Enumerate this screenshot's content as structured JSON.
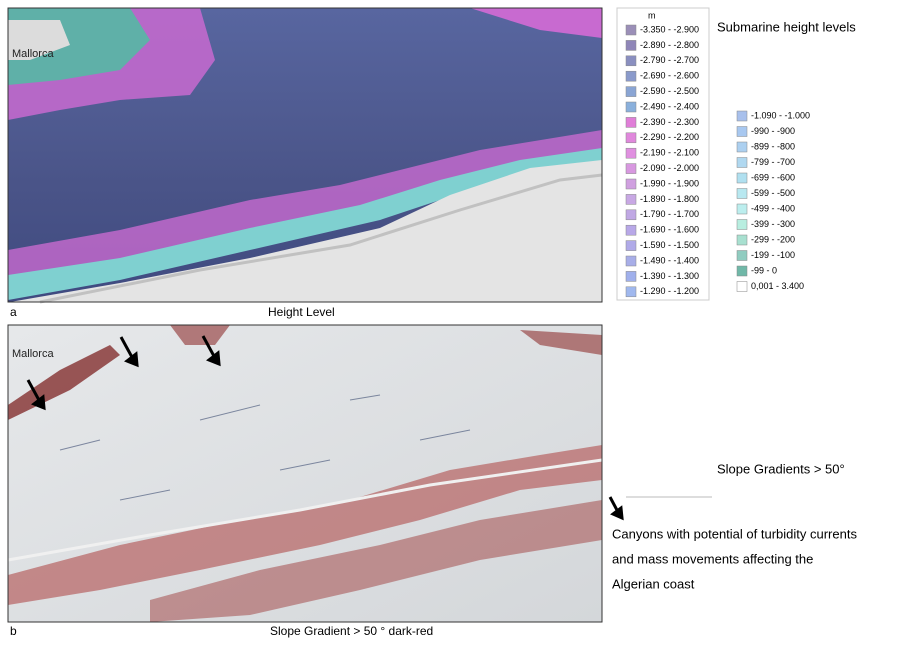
{
  "panel_a": {
    "place_label": "Mallorca",
    "letter": "a",
    "caption": "Height Level"
  },
  "panel_b": {
    "place_label": "Mallorca",
    "letter": "b",
    "caption": "Slope Gradient > 50 °   dark-red"
  },
  "legend": {
    "unit": "m",
    "title": "Submarine height levels",
    "column_1": [
      {
        "label": "-3.350 - -2.900",
        "color": "#9b8fb8"
      },
      {
        "label": "-2.890 - -2.800",
        "color": "#8f86b8"
      },
      {
        "label": "-2.790 - -2.700",
        "color": "#8a8fc0"
      },
      {
        "label": "-2.690 - -2.600",
        "color": "#8a9acb"
      },
      {
        "label": "-2.590 - -2.500",
        "color": "#8aa5d4"
      },
      {
        "label": "-2.490 - -2.400",
        "color": "#8ab0dc"
      },
      {
        "label": "-2.390 - -2.300",
        "color": "#e07ed8"
      },
      {
        "label": "-2.290 - -2.200",
        "color": "#e088dc"
      },
      {
        "label": "-2.190 - -2.100",
        "color": "#e090e0"
      },
      {
        "label": "-2.090 - -2.000",
        "color": "#d898e0"
      },
      {
        "label": "-1.990 - -1.900",
        "color": "#d0a0e0"
      },
      {
        "label": "-1.890 - -1.800",
        "color": "#c8a8e4"
      },
      {
        "label": "-1.790 - -1.700",
        "color": "#c0a8e4"
      },
      {
        "label": "-1.690 - -1.600",
        "color": "#b8a8e8"
      },
      {
        "label": "-1.590 - -1.500",
        "color": "#b0aae8"
      },
      {
        "label": "-1.490 - -1.400",
        "color": "#a8aee8"
      },
      {
        "label": "-1.390 - -1.300",
        "color": "#a0b0ec"
      },
      {
        "label": "-1.290 - -1.200",
        "color": "#a0b8ee"
      }
    ],
    "column_2": [
      {
        "label": "-1.090 - -1.000",
        "color": "#a8c0ec"
      },
      {
        "label": "-990 - -900",
        "color": "#a8c8f0"
      },
      {
        "label": "-899 - -800",
        "color": "#acd0f0"
      },
      {
        "label": "-799 - -700",
        "color": "#b0d8f0"
      },
      {
        "label": "-699 - -600",
        "color": "#b0e0f0"
      },
      {
        "label": "-599 - -500",
        "color": "#b8e8f0"
      },
      {
        "label": "-499 - -400",
        "color": "#bceeee"
      },
      {
        "label": "-399 - -300",
        "color": "#b8eee0"
      },
      {
        "label": "-299 - -200",
        "color": "#a8e0d0"
      },
      {
        "label": "-199 - -100",
        "color": "#90ccc0"
      },
      {
        "label": "-99 - 0",
        "color": "#70b8a8"
      },
      {
        "label": "0,001 - 3.400",
        "color": "#ffffff"
      }
    ]
  },
  "slope_legend": {
    "title": "Slope Gradients > 50°",
    "arrow_note": [
      "Canyons with potential of turbidity currents",
      "and mass movements affecting the",
      "Algerian coast"
    ]
  }
}
